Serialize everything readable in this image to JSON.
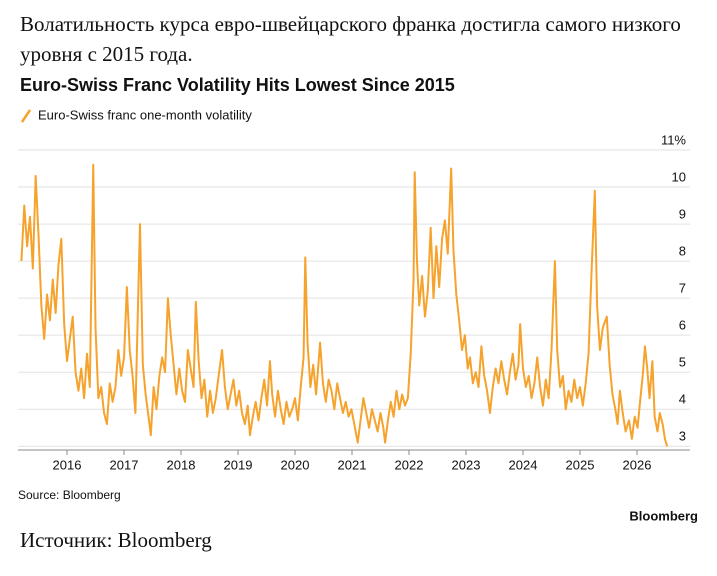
{
  "headline": "Волатильность курса евро-швейцарского франка достигла самого низкого уровня с 2015 года.",
  "caption": "Источник: Bloomberg",
  "chart_data": {
    "type": "line",
    "title": "Euro-Swiss Franc Volatility Hits Lowest Since 2015",
    "source": "Source: Bloomberg",
    "logo": "Bloomberg",
    "grid": true,
    "xlim": [
      2015.14,
      2026.93
    ],
    "xticks": [
      2016,
      2017,
      2018,
      2019,
      2020,
      2021,
      2022,
      2023,
      2024,
      2025,
      2026
    ],
    "ylim": [
      2.9,
      11
    ],
    "yticks": [
      3,
      4,
      5,
      6,
      7,
      8,
      9,
      10,
      {
        "value": 11,
        "label": "11%"
      }
    ],
    "x": [
      2015.2,
      2015.25,
      2015.3,
      2015.35,
      2015.4,
      2015.45,
      2015.5,
      2015.55,
      2015.6,
      2015.65,
      2015.7,
      2015.75,
      2015.8,
      2015.85,
      2015.9,
      2015.95,
      2016.0,
      2016.05,
      2016.1,
      2016.15,
      2016.2,
      2016.25,
      2016.3,
      2016.35,
      2016.4,
      2016.46,
      2016.5,
      2016.55,
      2016.6,
      2016.65,
      2016.7,
      2016.75,
      2016.8,
      2016.85,
      2016.9,
      2016.95,
      2017.0,
      2017.05,
      2017.1,
      2017.15,
      2017.2,
      2017.28,
      2017.33,
      2017.38,
      2017.43,
      2017.47,
      2017.52,
      2017.57,
      2017.62,
      2017.67,
      2017.72,
      2017.77,
      2017.82,
      2017.87,
      2017.92,
      2017.97,
      2018.02,
      2018.07,
      2018.12,
      2018.17,
      2018.22,
      2018.26,
      2018.31,
      2018.36,
      2018.41,
      2018.46,
      2018.51,
      2018.56,
      2018.61,
      2018.66,
      2018.72,
      2018.77,
      2018.82,
      2018.87,
      2018.92,
      2018.97,
      2019.02,
      2019.07,
      2019.12,
      2019.17,
      2019.21,
      2019.26,
      2019.31,
      2019.36,
      2019.41,
      2019.46,
      2019.51,
      2019.56,
      2019.6,
      2019.65,
      2019.7,
      2019.75,
      2019.8,
      2019.85,
      2019.9,
      2019.95,
      2020.0,
      2020.05,
      2020.1,
      2020.15,
      2020.18,
      2020.22,
      2020.27,
      2020.32,
      2020.37,
      2020.44,
      2020.49,
      2020.54,
      2020.59,
      2020.64,
      2020.69,
      2020.74,
      2020.79,
      2020.84,
      2020.89,
      2020.94,
      2020.99,
      2021.04,
      2021.1,
      2021.15,
      2021.2,
      2021.25,
      2021.3,
      2021.35,
      2021.4,
      2021.45,
      2021.5,
      2021.55,
      2021.58,
      2021.63,
      2021.68,
      2021.73,
      2021.78,
      2021.83,
      2021.88,
      2021.93,
      2021.98,
      2022.03,
      2022.08,
      2022.1,
      2022.14,
      2022.18,
      2022.23,
      2022.28,
      2022.33,
      2022.38,
      2022.43,
      2022.48,
      2022.53,
      2022.58,
      2022.63,
      2022.68,
      2022.74,
      2022.78,
      2022.83,
      2022.88,
      2022.93,
      2022.98,
      2023.03,
      2023.07,
      2023.12,
      2023.17,
      2023.22,
      2023.27,
      2023.32,
      2023.37,
      2023.42,
      2023.47,
      2023.52,
      2023.57,
      2023.62,
      2023.67,
      2023.72,
      2023.77,
      2023.82,
      2023.87,
      2023.92,
      2023.95,
      2024.0,
      2024.05,
      2024.1,
      2024.15,
      2024.2,
      2024.25,
      2024.3,
      2024.35,
      2024.4,
      2024.45,
      2024.5,
      2024.56,
      2024.6,
      2024.65,
      2024.7,
      2024.75,
      2024.8,
      2024.85,
      2024.9,
      2024.95,
      2025.0,
      2025.05,
      2025.1,
      2025.15,
      2025.2,
      2025.26,
      2025.3,
      2025.35,
      2025.4,
      2025.47,
      2025.52,
      2025.57,
      2025.62,
      2025.66,
      2025.7,
      2025.75,
      2025.8,
      2025.86,
      2025.91,
      2025.96,
      2026.01,
      2026.06,
      2026.1,
      2026.14,
      2026.18,
      2026.22,
      2026.27,
      2026.31,
      2026.36,
      2026.4,
      2026.45,
      2026.49,
      2026.53
    ],
    "series": [
      {
        "name": "Euro-Swiss franc one-month volatility",
        "color": "#f6a32d",
        "values": [
          8.0,
          9.5,
          8.4,
          9.2,
          7.8,
          10.3,
          8.7,
          6.8,
          5.9,
          7.1,
          6.4,
          7.5,
          6.6,
          7.9,
          8.6,
          6.3,
          5.3,
          5.9,
          6.5,
          5.0,
          4.5,
          5.1,
          4.3,
          5.5,
          4.6,
          10.6,
          6.2,
          4.3,
          4.6,
          3.9,
          3.6,
          4.7,
          4.2,
          4.6,
          5.6,
          4.9,
          5.4,
          7.3,
          5.6,
          4.9,
          3.9,
          9.0,
          5.2,
          4.4,
          3.8,
          3.3,
          4.6,
          4.0,
          4.9,
          5.4,
          5.0,
          7.0,
          6.0,
          5.2,
          4.4,
          5.1,
          4.5,
          4.2,
          5.6,
          5.1,
          4.6,
          6.9,
          5.3,
          4.3,
          4.8,
          3.8,
          4.5,
          3.9,
          4.3,
          4.9,
          5.6,
          4.6,
          4.0,
          4.4,
          4.8,
          4.1,
          4.5,
          3.9,
          3.6,
          4.1,
          3.3,
          3.8,
          4.2,
          3.7,
          4.3,
          4.8,
          4.1,
          5.3,
          4.4,
          3.8,
          4.5,
          4.0,
          3.6,
          4.2,
          3.8,
          4.0,
          4.3,
          3.7,
          4.6,
          5.4,
          8.1,
          5.8,
          4.6,
          5.2,
          4.4,
          5.8,
          4.7,
          4.2,
          4.8,
          4.5,
          4.0,
          4.7,
          4.3,
          3.9,
          4.2,
          3.8,
          4.0,
          3.6,
          3.1,
          3.7,
          4.3,
          3.9,
          3.5,
          4.0,
          3.7,
          3.4,
          3.9,
          3.5,
          3.1,
          3.7,
          4.2,
          3.8,
          4.5,
          4.0,
          4.4,
          4.1,
          4.3,
          5.5,
          7.5,
          10.4,
          8.0,
          6.8,
          7.6,
          6.5,
          7.2,
          8.9,
          7.0,
          8.4,
          7.3,
          8.6,
          9.1,
          8.2,
          10.5,
          8.3,
          7.1,
          6.4,
          5.6,
          6.0,
          5.1,
          5.4,
          4.7,
          5.0,
          4.6,
          5.7,
          4.9,
          4.5,
          3.9,
          4.6,
          5.1,
          4.7,
          5.3,
          4.8,
          4.4,
          5.0,
          5.5,
          4.8,
          5.2,
          6.3,
          5.1,
          4.6,
          4.9,
          4.3,
          4.7,
          5.4,
          4.6,
          4.1,
          4.8,
          4.3,
          5.6,
          8.0,
          5.6,
          4.6,
          4.9,
          4.0,
          4.5,
          4.2,
          4.8,
          4.3,
          4.6,
          4.1,
          4.7,
          5.5,
          7.6,
          9.9,
          6.8,
          5.6,
          6.2,
          6.5,
          5.2,
          4.4,
          4.0,
          3.6,
          4.5,
          3.9,
          3.4,
          3.7,
          3.2,
          3.8,
          3.5,
          4.3,
          4.9,
          5.7,
          5.1,
          4.3,
          5.3,
          3.8,
          3.4,
          3.9,
          3.6,
          3.2,
          3.0
        ]
      }
    ]
  }
}
